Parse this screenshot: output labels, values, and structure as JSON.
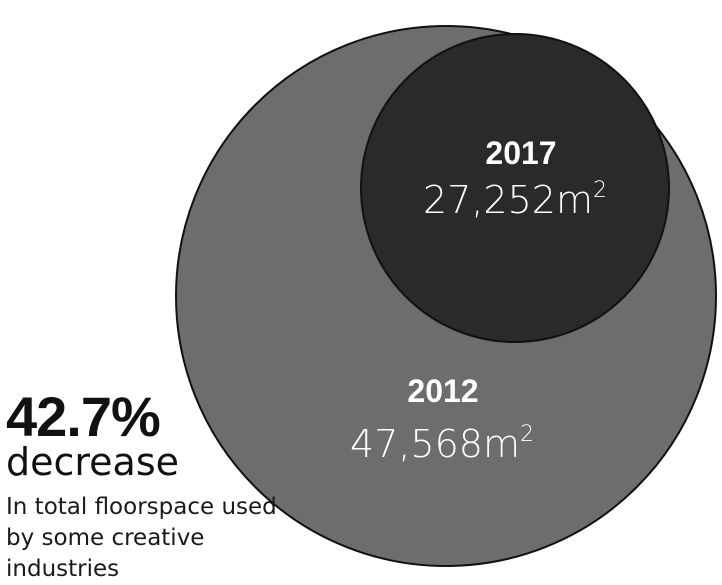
{
  "chart_data": {
    "type": "bubble",
    "unit": "m",
    "unit_superscript": "2",
    "series": [
      {
        "year": "2012",
        "value": 47568,
        "value_label": "47,568m",
        "color": "#6d6d6d"
      },
      {
        "year": "2017",
        "value": 27252,
        "value_label": "27,252m",
        "color": "#2a2a2a"
      }
    ]
  },
  "stat": {
    "figure": "42.7%",
    "word": "decrease",
    "caption": "In total floorspace used by some creative industries"
  },
  "colors": {
    "outline": "#111111",
    "text_light": "#ffffff",
    "text_dark": "#111111"
  }
}
